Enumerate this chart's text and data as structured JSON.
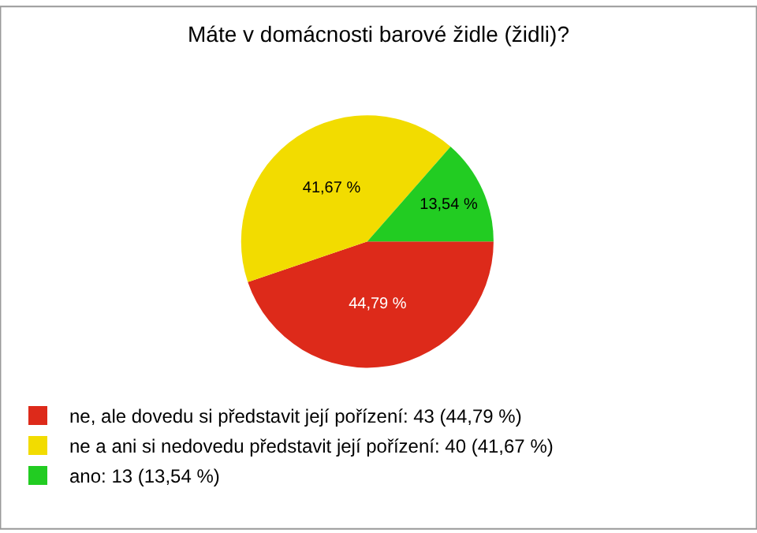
{
  "chart_data": {
    "type": "pie",
    "title": "Máte v domácnosti barové židle (židli)?",
    "categories": [
      "ne, ale dovedu si představit její pořízení: 43 (44,79 %)",
      "ne a ani si nedovedu představit její pořízení: 40 (41,67 %)",
      "ano: 13 (13,54 %)"
    ],
    "values": [
      44.79,
      41.67,
      13.54
    ],
    "colors": [
      "#dd2a1a",
      "#f2dc00",
      "#22cc22"
    ],
    "value_labels": [
      "44,79 %",
      "41,67 %",
      "13,54 %"
    ],
    "legend": "bottom left"
  }
}
